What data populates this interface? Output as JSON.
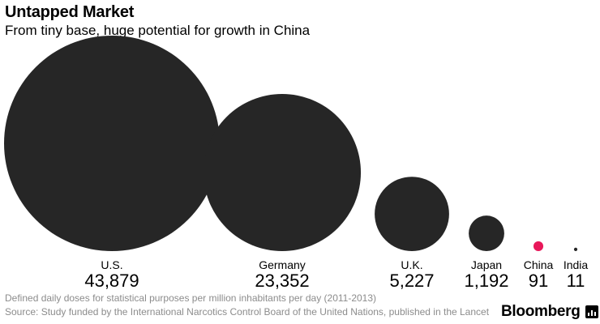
{
  "chart_data": {
    "type": "bubble",
    "title": "Untapped Market",
    "subtitle": "From tiny base, huge potential for growth in China",
    "xlabel": "",
    "ylabel": "",
    "categories": [
      "U.S.",
      "Germany",
      "U.K.",
      "Japan",
      "China",
      "India"
    ],
    "values": [
      43879,
      23352,
      5227,
      1192,
      91,
      11
    ],
    "value_labels": [
      "43,879",
      "23,352",
      "5,227",
      "1,192",
      "91",
      "11"
    ],
    "colors": [
      "#262626",
      "#262626",
      "#262626",
      "#262626",
      "#e8185a",
      "#262626"
    ]
  },
  "footer": {
    "note": "Defined daily doses for statistical purposes per million inhabitants per day (2011-2013)",
    "source": "Source: Study funded by the International Narcotics Control Board of the United Nations, published in the Lancet",
    "brand": "Bloomberg"
  }
}
